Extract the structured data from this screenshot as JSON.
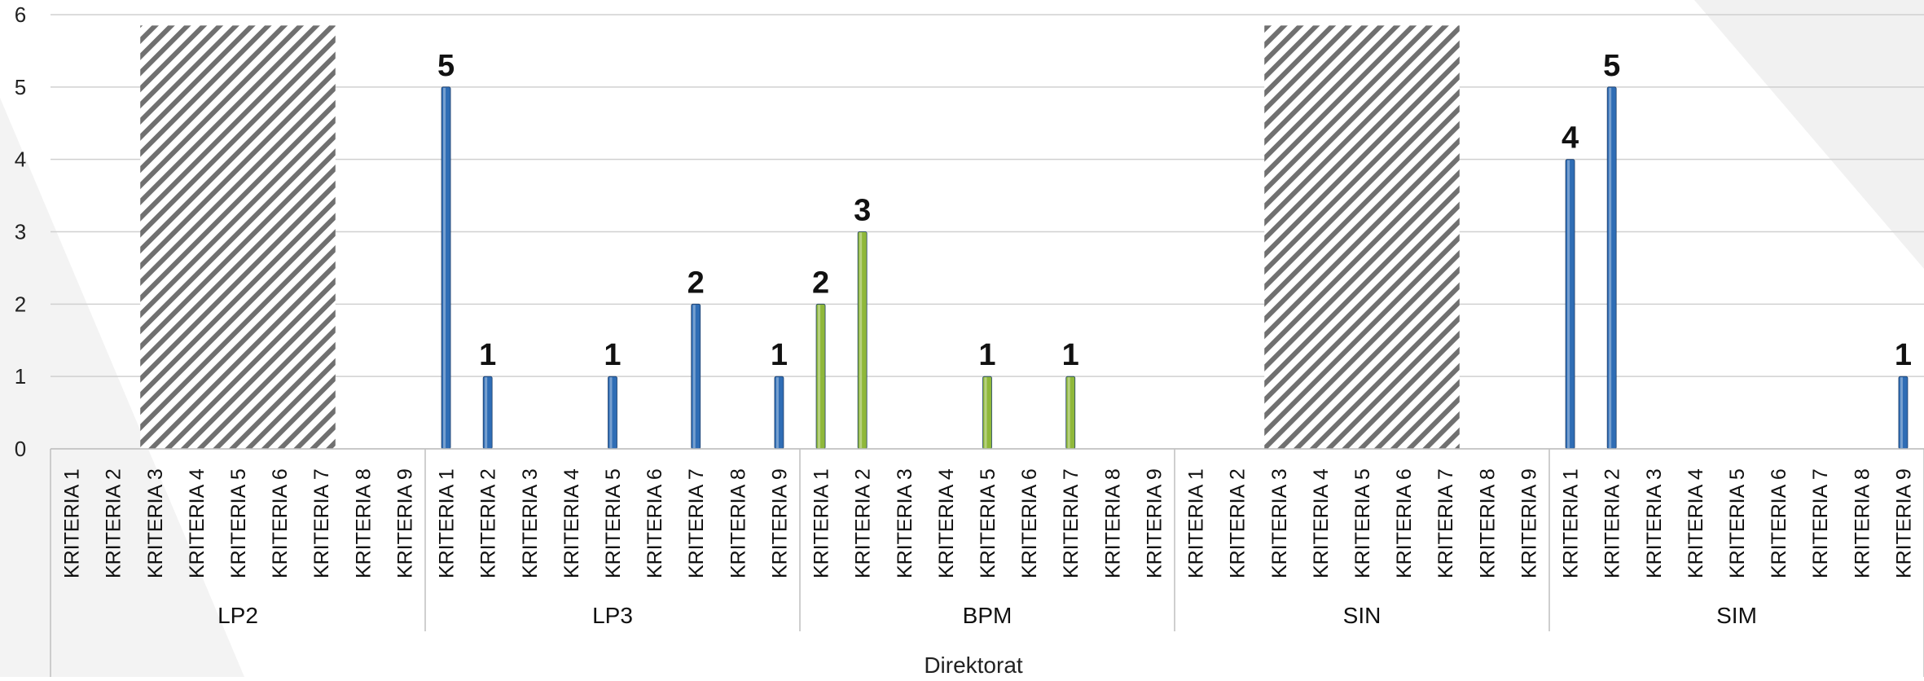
{
  "chart_data": {
    "type": "bar",
    "xlabel": "Direktorat",
    "ylabel": "",
    "ylim": [
      0,
      6
    ],
    "yticks": [
      "0",
      "1",
      "2",
      "3",
      "4",
      "5",
      "6"
    ],
    "grid": true,
    "legend": "none",
    "criteria": [
      "KRITERIA 1",
      "KRITERIA 2",
      "KRITERIA 3",
      "KRITERIA 4",
      "KRITERIA 5",
      "KRITERIA 6",
      "KRITERIA 7",
      "KRITERIA 8",
      "KRITERIA 9"
    ],
    "groups": [
      {
        "name": "LP2",
        "values": [
          0,
          0,
          0,
          0,
          0,
          0,
          0,
          0,
          0
        ],
        "hatched": true,
        "color": "#2f6db5"
      },
      {
        "name": "LP3",
        "values": [
          5,
          1,
          0,
          0,
          1,
          0,
          2,
          0,
          1
        ],
        "hatched": false,
        "color": "#2f6db5"
      },
      {
        "name": "BPM",
        "values": [
          2,
          3,
          0,
          0,
          1,
          0,
          1,
          0,
          0
        ],
        "hatched": false,
        "color": "#8fb83a"
      },
      {
        "name": "SIN",
        "values": [
          0,
          0,
          0,
          0,
          0,
          0,
          0,
          0,
          0
        ],
        "hatched": true,
        "color": "#2f6db5"
      },
      {
        "name": "SIM",
        "values": [
          4,
          5,
          0,
          0,
          0,
          0,
          0,
          0,
          1
        ],
        "hatched": false,
        "color": "#2f6db5"
      }
    ],
    "hatch_range": [
      0,
      5.85
    ],
    "hatch_criteria": [
      3,
      7
    ]
  }
}
